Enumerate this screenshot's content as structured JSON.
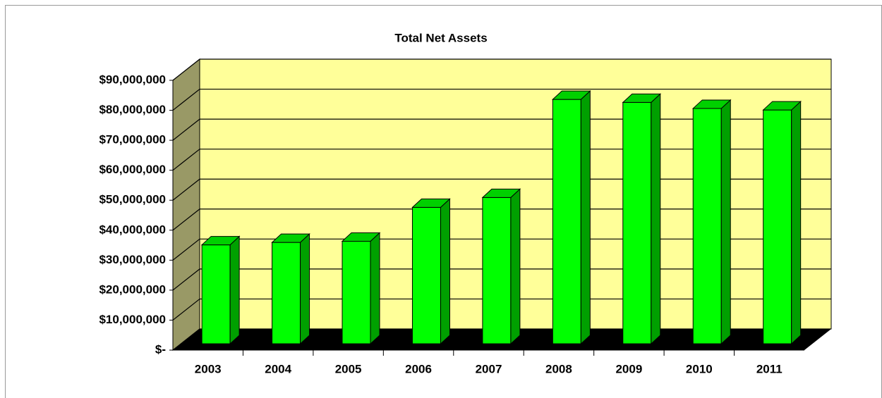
{
  "chart_data": {
    "type": "bar3d",
    "title": "Total  Net Assets",
    "categories": [
      "2003",
      "2004",
      "2005",
      "2006",
      "2007",
      "2008",
      "2009",
      "2010",
      "2011"
    ],
    "values": [
      33000000,
      33800000,
      34200000,
      45500000,
      48800000,
      81500000,
      80500000,
      78500000,
      78000000
    ],
    "color": "#00ff00",
    "ylim": [
      0,
      90000000
    ],
    "yticks": [
      {
        "value": 0,
        "label": "$-"
      },
      {
        "value": 10000000,
        "label": "$10,000,000"
      },
      {
        "value": 20000000,
        "label": "$20,000,000"
      },
      {
        "value": 30000000,
        "label": "$30,000,000"
      },
      {
        "value": 40000000,
        "label": "$40,000,000"
      },
      {
        "value": 50000000,
        "label": "$50,000,000"
      },
      {
        "value": 60000000,
        "label": "$60,000,000"
      },
      {
        "value": 70000000,
        "label": "$70,000,000"
      },
      {
        "value": 80000000,
        "label": "$80,000,000"
      },
      {
        "value": 90000000,
        "label": "$90,000,000"
      }
    ],
    "grid": true
  }
}
